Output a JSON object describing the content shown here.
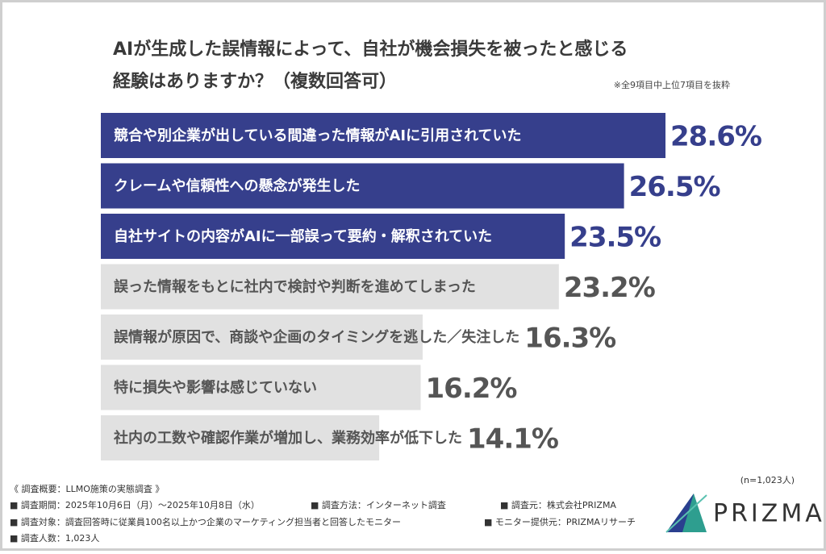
{
  "chart_data": {
    "type": "bar",
    "title": [
      "AIが生成した誤情報によって、自社が機会損失を被ったと感じる",
      "経験はありますか？（複数回答可）"
    ],
    "note": "※全9項目中上位7項目を抜粋",
    "categories": [
      "競合や別企業が出している間違った情報がAIに引用されていた",
      "クレームや信頼性への懸念が発生した",
      "自社サイトの内容がAIに一部誤って要約・解釈されていた",
      "誤った情報をもとに社内で検討や判断を進めてしまった",
      "誤情報が原因で、商談や企画のタイミングを逃した／失注した",
      "特に損失や影響は感じていない",
      "社内の工数や確認作業が増加し、業務効率が低下した"
    ],
    "values": [
      28.6,
      26.5,
      23.5,
      23.2,
      16.3,
      16.2,
      14.1
    ],
    "value_labels": [
      "28.6%",
      "26.5%",
      "23.5%",
      "23.2%",
      "16.3%",
      "16.2%",
      "14.1%"
    ],
    "colors": [
      "#363f8c",
      "#363f8c",
      "#363f8c",
      "#e1e1e1",
      "#e1e1e1",
      "#e1e1e1",
      "#e1e1e1"
    ],
    "sample": "(n=1,023人)"
  },
  "footer": {
    "heading": "《 調査概要：LLMO施策の実態調査 》",
    "items": [
      "■ 調査期間：2025年10月6日（月）〜2025年10月8日（水）",
      "■ 調査方法：インターネット調査",
      "■ 調査元：株式会社PRIZMA",
      "■ 調査対象：調査回答時に従業員100名以上かつ企業のマーケティング担当者と回答したモニター",
      "■ モニター提供元：PRIZMAリサーチ",
      "■ 調査人数：1,023人"
    ],
    "logo": "PRIZMA"
  }
}
